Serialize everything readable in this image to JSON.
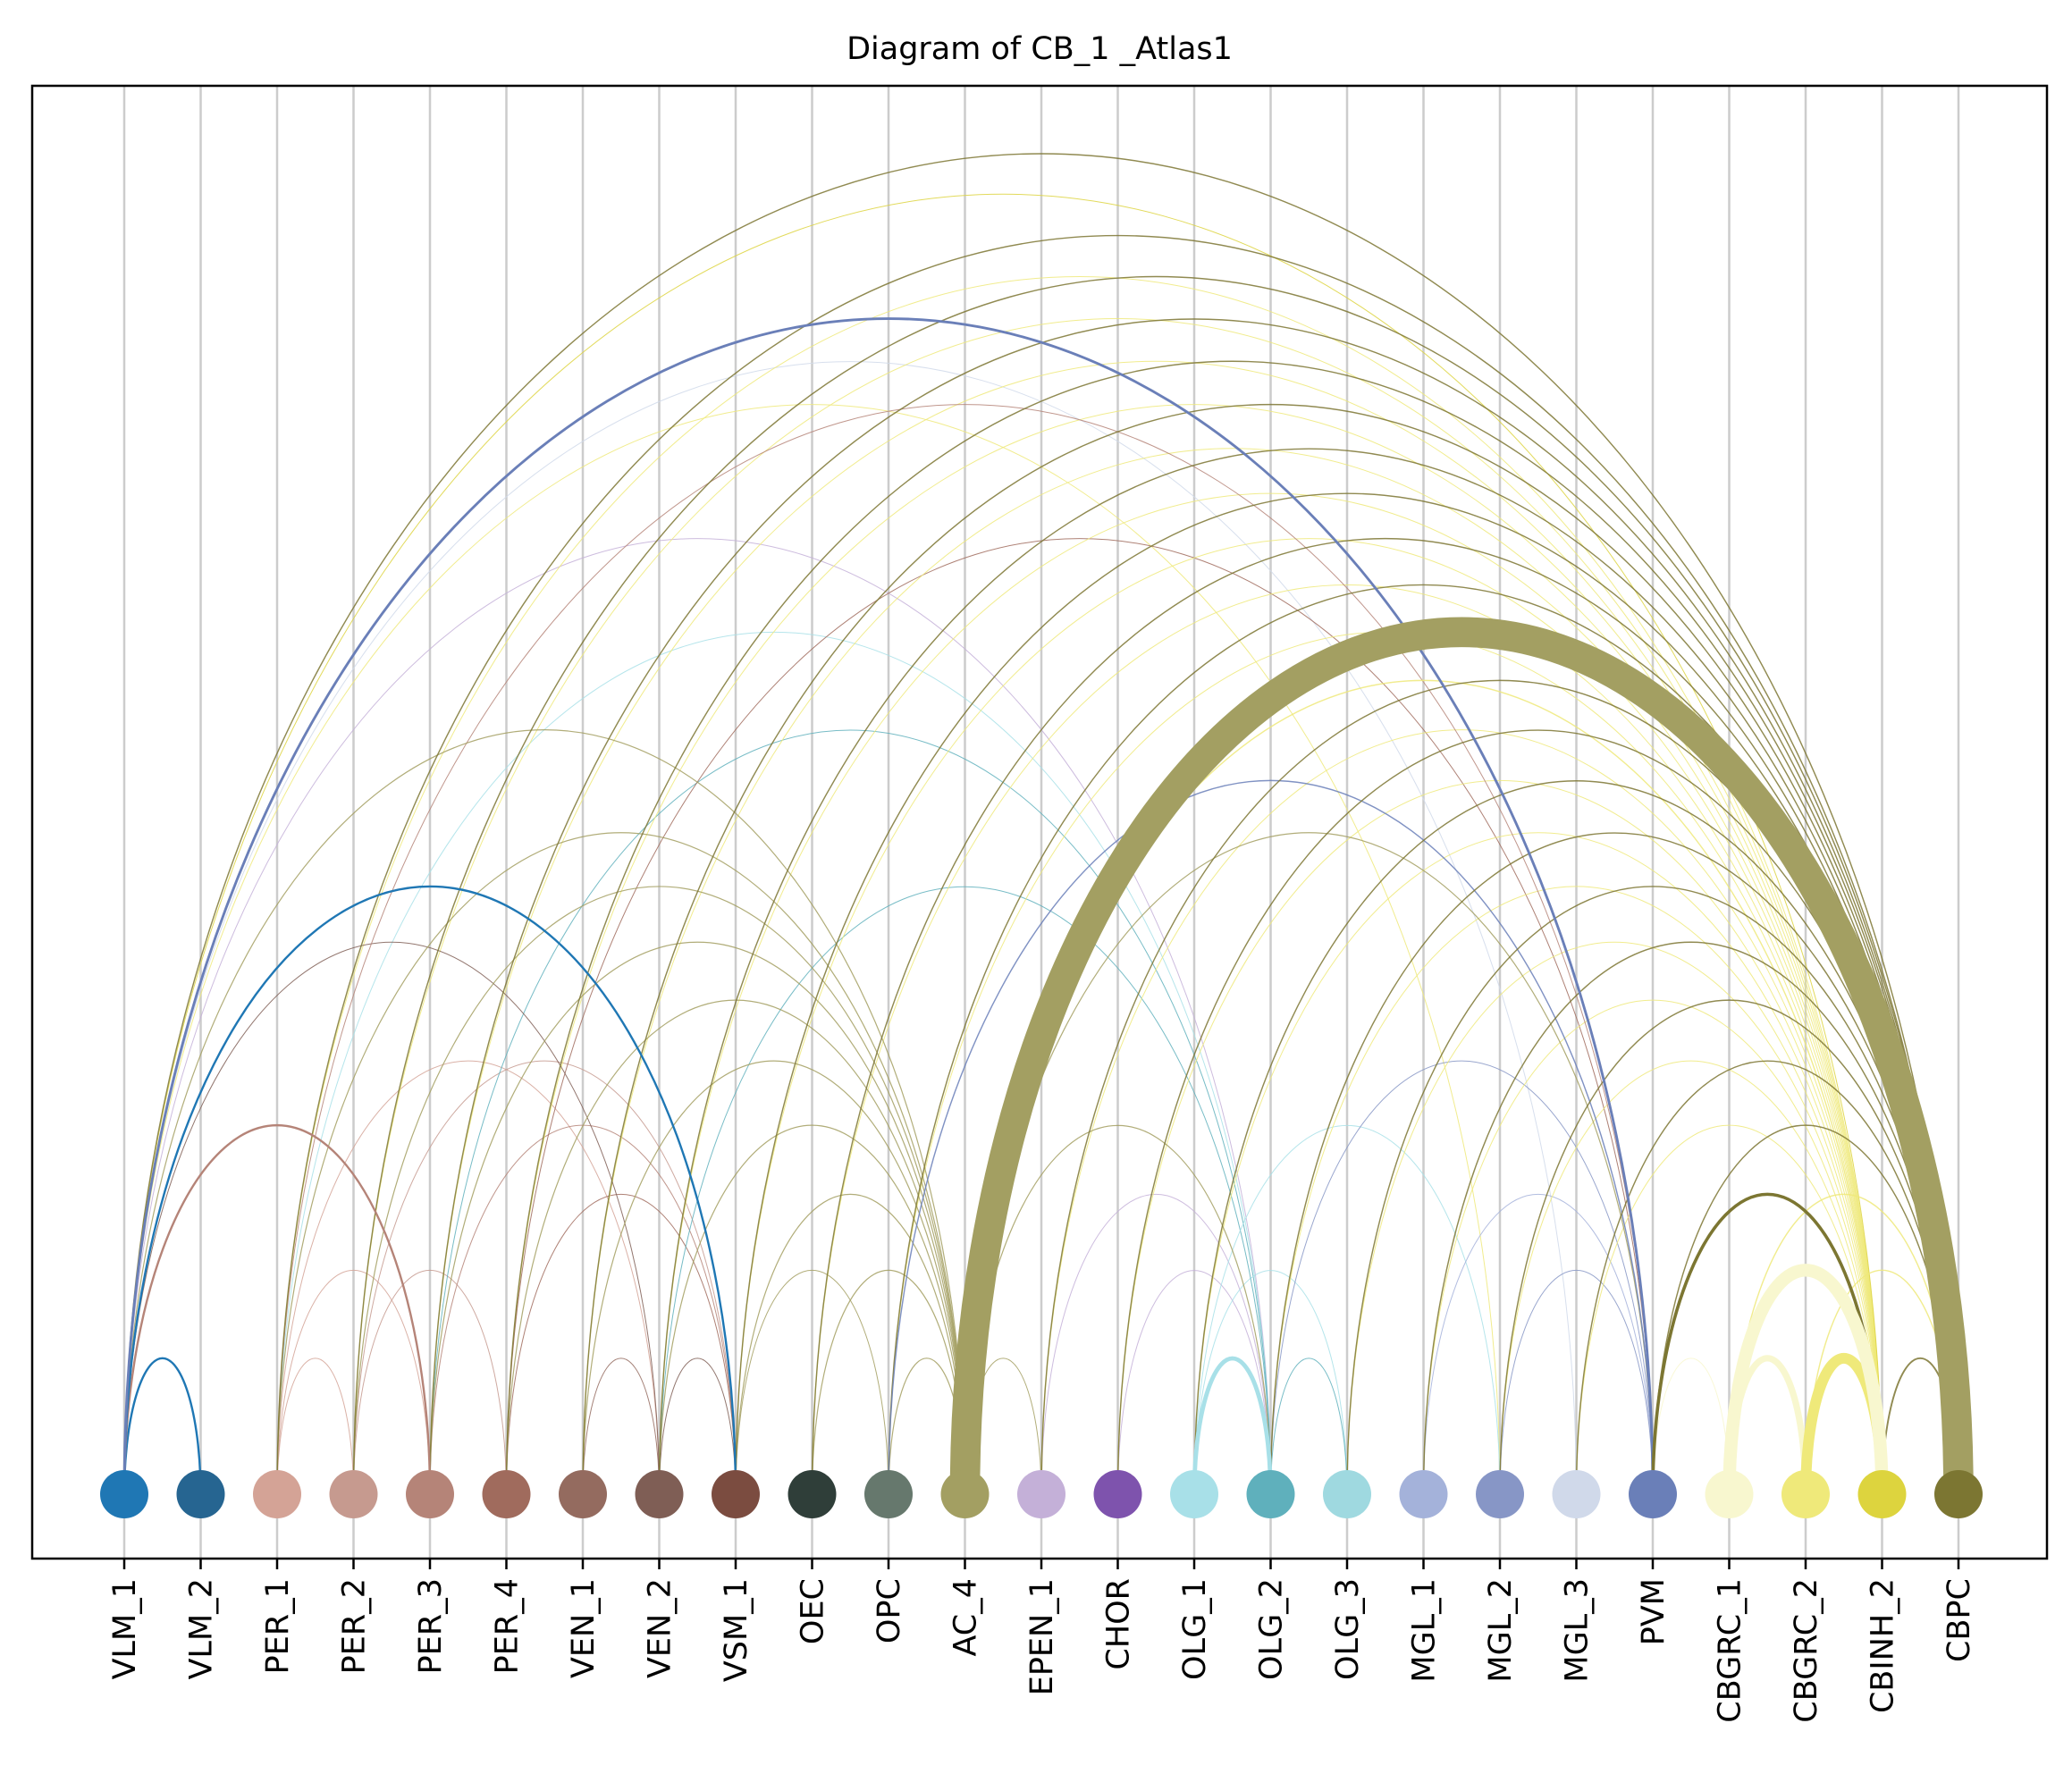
{
  "title": "Diagram of CB_1 _Atlas1",
  "nodes": [
    {
      "label": "VLM_1",
      "color": "#1f77b4"
    },
    {
      "label": "VLM_2",
      "color": "#266591"
    },
    {
      "label": "PER_1",
      "color": "#d4a396"
    },
    {
      "label": "PER_2",
      "color": "#c69a8f"
    },
    {
      "label": "PER_3",
      "color": "#b58478"
    },
    {
      "label": "PER_4",
      "color": "#a06b5d"
    },
    {
      "label": "VEN_1",
      "color": "#946b5f"
    },
    {
      "label": "VEN_2",
      "color": "#7f5e55"
    },
    {
      "label": "VSM_1",
      "color": "#7b4c40"
    },
    {
      "label": "OEC",
      "color": "#2f3e39"
    },
    {
      "label": "OPC",
      "color": "#66786d"
    },
    {
      "label": "AC_4",
      "color": "#a39f62"
    },
    {
      "label": "EPEN_1",
      "color": "#c4b0d8"
    },
    {
      "label": "CHOR",
      "color": "#7e53ad"
    },
    {
      "label": "OLG_1",
      "color": "#a8e0e8"
    },
    {
      "label": "OLG_2",
      "color": "#5fb0bc"
    },
    {
      "label": "OLG_3",
      "color": "#9fd9e0"
    },
    {
      "label": "MGL_1",
      "color": "#a4b2da"
    },
    {
      "label": "MGL_2",
      "color": "#8796c6"
    },
    {
      "label": "MGL_3",
      "color": "#d0d9ea"
    },
    {
      "label": "PVM",
      "color": "#6a7fb8"
    },
    {
      "label": "CBGRC_1",
      "color": "#f8f7cf"
    },
    {
      "label": "CBGRC_2",
      "color": "#efe97a"
    },
    {
      "label": "CBINH_2",
      "color": "#ddd43e"
    },
    {
      "label": "CBPC",
      "color": "#7c7632"
    }
  ],
  "edges": [
    {
      "source": "VLM_1",
      "target": "VLM_2",
      "weight": 1.0,
      "color": "#1f77b4"
    },
    {
      "source": "VLM_1",
      "target": "PER_3",
      "weight": 1.0,
      "color": "#b58478"
    },
    {
      "source": "VLM_1",
      "target": "VSM_1",
      "weight": 1.0,
      "color": "#1f77b4"
    },
    {
      "source": "VLM_1",
      "target": "PVM",
      "weight": 1.2,
      "color": "#6a7fb8"
    },
    {
      "source": "VLM_1",
      "target": "CBPC",
      "weight": 0.6,
      "color": "#7c7632"
    },
    {
      "source": "VLM_1",
      "target": "CBINH_2",
      "weight": 0.4,
      "color": "#ddd43e"
    },
    {
      "source": "VLM_1",
      "target": "MGL_2",
      "weight": 0.3,
      "color": "#efe97a"
    },
    {
      "source": "VLM_1",
      "target": "AC_4",
      "weight": 0.5,
      "color": "#a39f62"
    },
    {
      "source": "VLM_1",
      "target": "VEN_2",
      "weight": 0.4,
      "color": "#7f5e55"
    },
    {
      "source": "VLM_1",
      "target": "OLG_2",
      "weight": 0.2,
      "color": "#c4b0d8"
    },
    {
      "source": "VLM_1",
      "target": "MGL_3",
      "weight": 0.2,
      "color": "#d0d9ea"
    },
    {
      "source": "PER_1",
      "target": "CBPC",
      "weight": 0.6,
      "color": "#7c7632"
    },
    {
      "source": "PER_1",
      "target": "CBINH_2",
      "weight": 0.3,
      "color": "#efe97a"
    },
    {
      "source": "PER_1",
      "target": "PVM",
      "weight": 0.4,
      "color": "#b58478"
    },
    {
      "source": "PER_1",
      "target": "AC_4",
      "weight": 0.5,
      "color": "#a39f62"
    },
    {
      "source": "PER_1",
      "target": "OLG_2",
      "weight": 0.2,
      "color": "#a8e0e8"
    },
    {
      "source": "PER_1",
      "target": "VEN_2",
      "weight": 0.2,
      "color": "#d4a396"
    },
    {
      "source": "PER_1",
      "target": "PER_3",
      "weight": 0.2,
      "color": "#d4a396"
    },
    {
      "source": "PER_1",
      "target": "PER_2",
      "weight": 0.1,
      "color": "#d4a396"
    },
    {
      "source": "PER_2",
      "target": "CBPC",
      "weight": 0.6,
      "color": "#7c7632"
    },
    {
      "source": "PER_2",
      "target": "CBINH_2",
      "weight": 0.3,
      "color": "#efe97a"
    },
    {
      "source": "PER_2",
      "target": "AC_4",
      "weight": 0.5,
      "color": "#a39f62"
    },
    {
      "source": "PER_2",
      "target": "PER_4",
      "weight": 0.1,
      "color": "#c69a8f"
    },
    {
      "source": "PER_2",
      "target": "VSM_1",
      "weight": 0.2,
      "color": "#c69a8f"
    },
    {
      "source": "PER_3",
      "target": "CBPC",
      "weight": 0.6,
      "color": "#7c7632"
    },
    {
      "source": "PER_3",
      "target": "CBINH_2",
      "weight": 0.3,
      "color": "#efe97a"
    },
    {
      "source": "PER_3",
      "target": "AC_4",
      "weight": 0.5,
      "color": "#a39f62"
    },
    {
      "source": "PER_3",
      "target": "OLG_2",
      "weight": 0.2,
      "color": "#5fb0bc"
    },
    {
      "source": "PER_3",
      "target": "VSM_1",
      "weight": 0.2,
      "color": "#b58478"
    },
    {
      "source": "PER_4",
      "target": "CBPC",
      "weight": 0.6,
      "color": "#7c7632"
    },
    {
      "source": "PER_4",
      "target": "CBINH_2",
      "weight": 0.3,
      "color": "#efe97a"
    },
    {
      "source": "PER_4",
      "target": "AC_4",
      "weight": 0.5,
      "color": "#a39f62"
    },
    {
      "source": "PER_4",
      "target": "PVM",
      "weight": 0.3,
      "color": "#a06b5d"
    },
    {
      "source": "PER_4",
      "target": "VSM_1",
      "weight": 0.2,
      "color": "#a06b5d"
    },
    {
      "source": "VEN_1",
      "target": "CBPC",
      "weight": 0.6,
      "color": "#7c7632"
    },
    {
      "source": "VEN_1",
      "target": "CBINH_2",
      "weight": 0.3,
      "color": "#efe97a"
    },
    {
      "source": "VEN_1",
      "target": "AC_4",
      "weight": 0.5,
      "color": "#a39f62"
    },
    {
      "source": "VEN_1",
      "target": "VEN_2",
      "weight": 0.2,
      "color": "#946b5f"
    },
    {
      "source": "VEN_2",
      "target": "CBPC",
      "weight": 0.6,
      "color": "#7c7632"
    },
    {
      "source": "VEN_2",
      "target": "CBINH_2",
      "weight": 0.3,
      "color": "#efe97a"
    },
    {
      "source": "VEN_2",
      "target": "AC_4",
      "weight": 0.5,
      "color": "#a39f62"
    },
    {
      "source": "VEN_2",
      "target": "OLG_2",
      "weight": 0.3,
      "color": "#5fb0bc"
    },
    {
      "source": "VEN_2",
      "target": "VSM_1",
      "weight": 0.2,
      "color": "#7f5e55"
    },
    {
      "source": "VSM_1",
      "target": "CBPC",
      "weight": 0.6,
      "color": "#7c7632"
    },
    {
      "source": "VSM_1",
      "target": "CBINH_2",
      "weight": 0.3,
      "color": "#efe97a"
    },
    {
      "source": "VSM_1",
      "target": "AC_4",
      "weight": 0.5,
      "color": "#a39f62"
    },
    {
      "source": "VSM_1",
      "target": "OPC",
      "weight": 0.3,
      "color": "#a39f62"
    },
    {
      "source": "OEC",
      "target": "CBPC",
      "weight": 0.6,
      "color": "#7c7632"
    },
    {
      "source": "OEC",
      "target": "AC_4",
      "weight": 0.5,
      "color": "#a39f62"
    },
    {
      "source": "OEC",
      "target": "CBINH_2",
      "weight": 0.3,
      "color": "#efe97a"
    },
    {
      "source": "OPC",
      "target": "CBPC",
      "weight": 0.6,
      "color": "#7c7632"
    },
    {
      "source": "OPC",
      "target": "PVM",
      "weight": 0.6,
      "color": "#6a7fb8"
    },
    {
      "source": "OPC",
      "target": "AC_4",
      "weight": 0.5,
      "color": "#a39f62"
    },
    {
      "source": "OPC",
      "target": "CBINH_2",
      "weight": 0.3,
      "color": "#efe97a"
    },
    {
      "source": "AC_4",
      "target": "CBPC",
      "weight": 14.0,
      "color": "#a39f62"
    },
    {
      "source": "AC_4",
      "target": "CBINH_2",
      "weight": 0.6,
      "color": "#efe97a"
    },
    {
      "source": "AC_4",
      "target": "OLG_2",
      "weight": 0.5,
      "color": "#a39f62"
    },
    {
      "source": "AC_4",
      "target": "EPEN_1",
      "weight": 0.4,
      "color": "#a39f62"
    },
    {
      "source": "AC_4",
      "target": "PVM",
      "weight": 0.5,
      "color": "#a39f62"
    },
    {
      "source": "EPEN_1",
      "target": "CBPC",
      "weight": 0.6,
      "color": "#7c7632"
    },
    {
      "source": "EPEN_1",
      "target": "CBINH_2",
      "weight": 0.3,
      "color": "#efe97a"
    },
    {
      "source": "EPEN_1",
      "target": "OLG_2",
      "weight": 0.2,
      "color": "#c4b0d8"
    },
    {
      "source": "CHOR",
      "target": "CBPC",
      "weight": 0.6,
      "color": "#7c7632"
    },
    {
      "source": "CHOR",
      "target": "CBINH_2",
      "weight": 0.3,
      "color": "#efe97a"
    },
    {
      "source": "CHOR",
      "target": "OLG_2",
      "weight": 0.2,
      "color": "#c4b0d8"
    },
    {
      "source": "OLG_1",
      "target": "OLG_2",
      "weight": 2.0,
      "color": "#a8e0e8"
    },
    {
      "source": "OLG_1",
      "target": "CBPC",
      "weight": 0.6,
      "color": "#7c7632"
    },
    {
      "source": "OLG_1",
      "target": "CBINH_2",
      "weight": 0.3,
      "color": "#efe97a"
    },
    {
      "source": "OLG_1",
      "target": "MGL_2",
      "weight": 0.3,
      "color": "#a8e0e8"
    },
    {
      "source": "OLG_1",
      "target": "OLG_3",
      "weight": 0.2,
      "color": "#a8e0e8"
    },
    {
      "source": "OLG_2",
      "target": "CBPC",
      "weight": 0.6,
      "color": "#7c7632"
    },
    {
      "source": "OLG_2",
      "target": "CBINH_2",
      "weight": 0.3,
      "color": "#efe97a"
    },
    {
      "source": "OLG_2",
      "target": "OLG_3",
      "weight": 0.4,
      "color": "#5fb0bc"
    },
    {
      "source": "OLG_2",
      "target": "PVM",
      "weight": 0.3,
      "color": "#8796c6"
    },
    {
      "source": "OLG_3",
      "target": "CBPC",
      "weight": 0.6,
      "color": "#7c7632"
    },
    {
      "source": "OLG_3",
      "target": "CBINH_2",
      "weight": 0.3,
      "color": "#efe97a"
    },
    {
      "source": "MGL_1",
      "target": "CBPC",
      "weight": 0.6,
      "color": "#7c7632"
    },
    {
      "source": "MGL_1",
      "target": "CBINH_2",
      "weight": 0.3,
      "color": "#efe97a"
    },
    {
      "source": "MGL_1",
      "target": "PVM",
      "weight": 0.3,
      "color": "#a4b2da"
    },
    {
      "source": "MGL_2",
      "target": "CBPC",
      "weight": 0.6,
      "color": "#7c7632"
    },
    {
      "source": "MGL_2",
      "target": "CBINH_2",
      "weight": 0.3,
      "color": "#efe97a"
    },
    {
      "source": "MGL_2",
      "target": "PVM",
      "weight": 0.3,
      "color": "#8796c6"
    },
    {
      "source": "MGL_3",
      "target": "CBPC",
      "weight": 0.6,
      "color": "#7c7632"
    },
    {
      "source": "MGL_3",
      "target": "CBINH_2",
      "weight": 0.3,
      "color": "#efe97a"
    },
    {
      "source": "PVM",
      "target": "CBPC",
      "weight": 0.6,
      "color": "#7c7632"
    },
    {
      "source": "PVM",
      "target": "CBINH_2",
      "weight": 1.5,
      "color": "#7c7632"
    },
    {
      "source": "PVM",
      "target": "CBGRC_1",
      "weight": 0.3,
      "color": "#f8f7cf"
    },
    {
      "source": "CBGRC_1",
      "target": "CBINH_2",
      "weight": 6.0,
      "color": "#f8f7cf"
    },
    {
      "source": "CBGRC_1",
      "target": "CBGRC_2",
      "weight": 3.0,
      "color": "#f8f7cf"
    },
    {
      "source": "CBGRC_1",
      "target": "CBPC",
      "weight": 0.6,
      "color": "#efe97a"
    },
    {
      "source": "CBGRC_2",
      "target": "CBINH_2",
      "weight": 5.0,
      "color": "#efe97a"
    },
    {
      "source": "CBGRC_2",
      "target": "CBPC",
      "weight": 0.6,
      "color": "#efe97a"
    },
    {
      "source": "CBINH_2",
      "target": "CBPC",
      "weight": 0.8,
      "color": "#7c7632"
    }
  ],
  "self_loops": [
    {
      "node": "CBGRC_2",
      "weight": 4.0,
      "color": "#efe97a"
    },
    {
      "node": "CBINH_2",
      "weight": 4.0,
      "color": "#efe97a"
    }
  ]
}
